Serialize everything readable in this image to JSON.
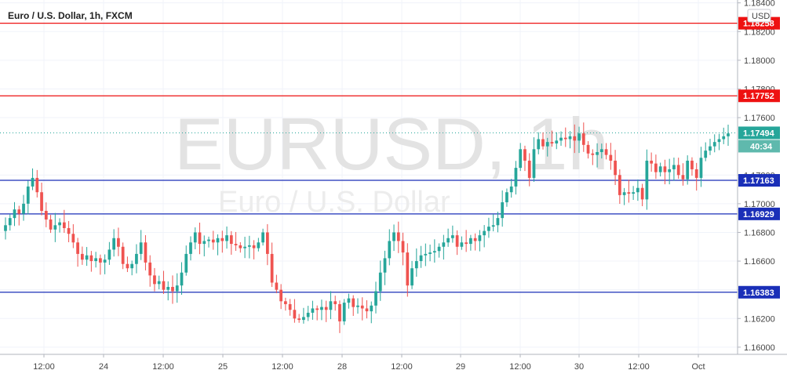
{
  "chart_data": {
    "type": "candlestick",
    "title": "Euro / U.S. Dollar, 1h, FXCM",
    "currency": "USD",
    "watermark": {
      "symbol": "EURUSD, 1h",
      "name": "Euro / U.S. Dollar"
    },
    "ylim": [
      1.1595,
      1.1842
    ],
    "yticks": [
      "1.18400",
      "1.18200",
      "1.18000",
      "1.17800",
      "1.17600",
      "1.17200",
      "1.17000",
      "1.16800",
      "1.16600",
      "1.16400",
      "1.16200",
      "1.16000"
    ],
    "x_labels": [
      "12:00",
      "24",
      "12:00",
      "25",
      "12:00",
      "28",
      "12:00",
      "29",
      "12:00",
      "30",
      "12:00",
      "Oct"
    ],
    "levels": [
      {
        "label": "1.18258",
        "value": 1.18258,
        "color": "#ee1111"
      },
      {
        "label": "1.17752",
        "value": 1.17752,
        "color": "#ee1111"
      },
      {
        "label": "1.17163",
        "value": 1.17163,
        "color": "#1a2fb8"
      },
      {
        "label": "1.16929",
        "value": 1.16929,
        "color": "#1a2fb8"
      },
      {
        "label": "1.16383",
        "value": 1.16383,
        "color": "#1a2fb8"
      }
    ],
    "last_price": {
      "label": "1.17494",
      "value": 1.17494,
      "countdown": "40:34",
      "color": "#26a69a"
    },
    "colors": {
      "up": "#26a69a",
      "down": "#ef5350",
      "grid": "#f0f3fa",
      "axis": "#b2b5be"
    },
    "closes": [
      1.1685,
      1.169,
      1.1696,
      1.1693,
      1.17,
      1.1712,
      1.1718,
      1.1708,
      1.1695,
      1.1689,
      1.1682,
      1.1685,
      1.1687,
      1.1683,
      1.1679,
      1.1673,
      1.1665,
      1.1661,
      1.1664,
      1.166,
      1.1662,
      1.1659,
      1.1661,
      1.1668,
      1.1676,
      1.167,
      1.1658,
      1.1655,
      1.1658,
      1.1665,
      1.1673,
      1.1659,
      1.165,
      1.1644,
      1.1646,
      1.164,
      1.1642,
      1.1639,
      1.1643,
      1.1652,
      1.1665,
      1.1673,
      1.168,
      1.1672,
      1.1674,
      1.1675,
      1.1673,
      1.1676,
      1.1674,
      1.1678,
      1.1672,
      1.1671,
      1.1669,
      1.167,
      1.1671,
      1.1669,
      1.1673,
      1.168,
      1.1665,
      1.1645,
      1.164,
      1.1632,
      1.163,
      1.1626,
      1.162,
      1.1619,
      1.1621,
      1.1624,
      1.1627,
      1.1626,
      1.1628,
      1.1626,
      1.1632,
      1.163,
      1.1618,
      1.1631,
      1.1634,
      1.1628,
      1.1629,
      1.1627,
      1.1625,
      1.1629,
      1.1639,
      1.1652,
      1.1662,
      1.1674,
      1.168,
      1.1674,
      1.1666,
      1.1643,
      1.1655,
      1.166,
      1.1664,
      1.1665,
      1.1666,
      1.1667,
      1.167,
      1.1673,
      1.1676,
      1.1678,
      1.167,
      1.1673,
      1.1672,
      1.1676,
      1.1674,
      1.1678,
      1.1681,
      1.1684,
      1.1685,
      1.169,
      1.1701,
      1.1708,
      1.1712,
      1.1725,
      1.1738,
      1.173,
      1.1718,
      1.1738,
      1.1745,
      1.174,
      1.1743,
      1.1742,
      1.1744,
      1.1746,
      1.1745,
      1.1747,
      1.1744,
      1.1749,
      1.1741,
      1.1735,
      1.1734,
      1.1736,
      1.1738,
      1.1734,
      1.173,
      1.172,
      1.1706,
      1.1708,
      1.1707,
      1.1708,
      1.1711,
      1.1703,
      1.173,
      1.1728,
      1.1722,
      1.1726,
      1.1722,
      1.1724,
      1.1727,
      1.172,
      1.1717,
      1.173,
      1.1724,
      1.1718,
      1.1732,
      1.1737,
      1.174,
      1.1743,
      1.1745,
      1.1747,
      1.1749
    ]
  }
}
